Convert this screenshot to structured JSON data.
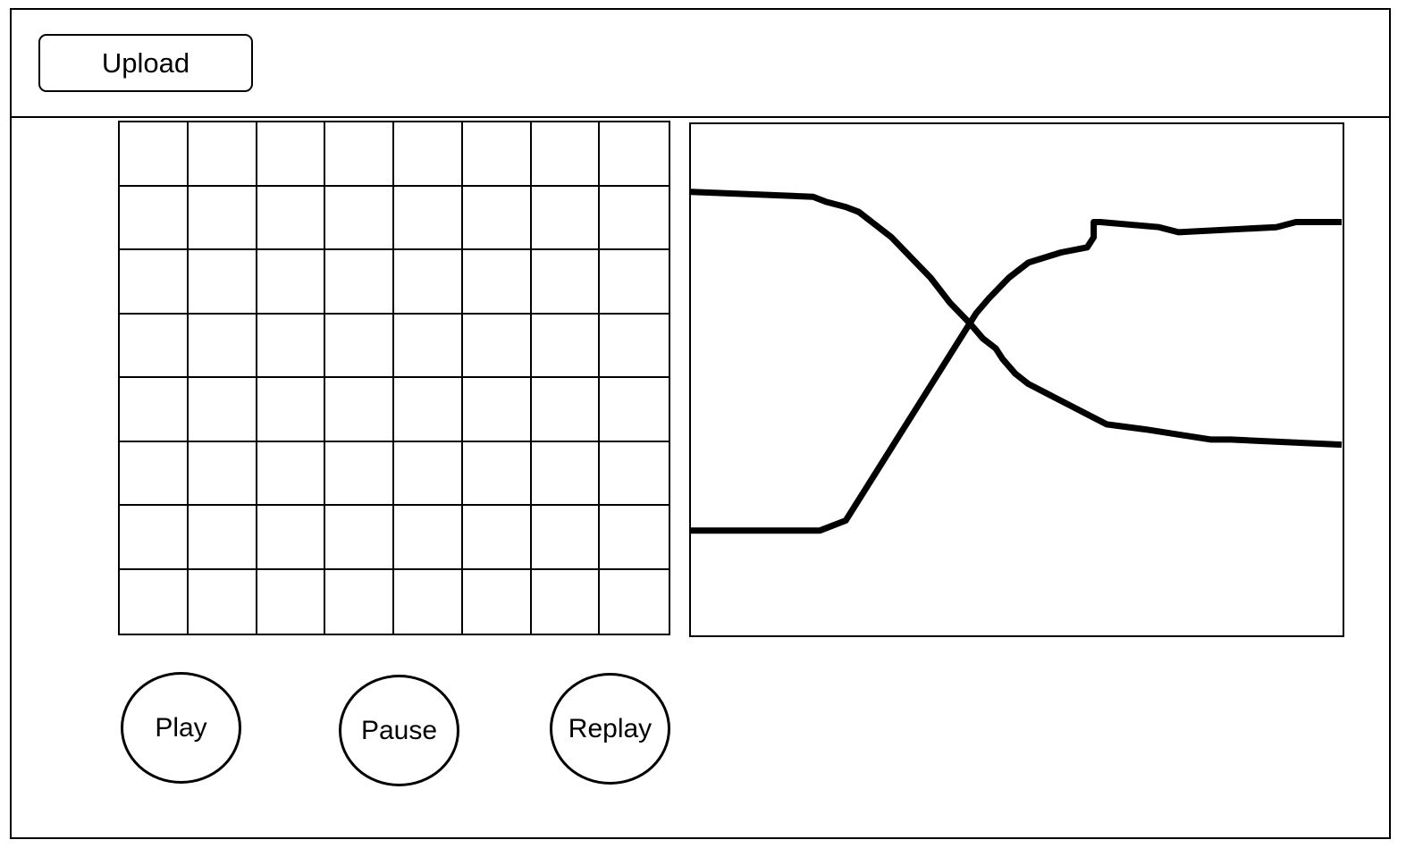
{
  "header": {
    "upload_label": "Upload"
  },
  "grid": {
    "rows": 8,
    "cols": 8
  },
  "chart_data": {
    "type": "line",
    "title": "",
    "xlabel": "",
    "ylabel": "",
    "grid": false,
    "series": [
      {
        "x": [
          0,
          0.19,
          0.21,
          0.24,
          0.26,
          0.28,
          0.31,
          0.34,
          0.37,
          0.4,
          0.43,
          0.45,
          0.47,
          0.48,
          0.5,
          0.52,
          0.55,
          0.58,
          0.61,
          0.64,
          0.7,
          0.75,
          0.8,
          0.83,
          1.0
        ],
        "y": [
          0.87,
          0.86,
          0.85,
          0.84,
          0.83,
          0.81,
          0.78,
          0.74,
          0.7,
          0.65,
          0.61,
          0.58,
          0.56,
          0.54,
          0.51,
          0.49,
          0.47,
          0.45,
          0.43,
          0.41,
          0.4,
          0.39,
          0.38,
          0.38,
          0.37
        ]
      },
      {
        "x": [
          0,
          0.2,
          0.24,
          0.44,
          0.46,
          0.49,
          0.52,
          0.57,
          0.61,
          0.62,
          0.62,
          0.63,
          0.72,
          0.75,
          0.9,
          0.93,
          1.0
        ],
        "y": [
          0.2,
          0.2,
          0.22,
          0.63,
          0.66,
          0.7,
          0.73,
          0.75,
          0.76,
          0.78,
          0.81,
          0.81,
          0.8,
          0.79,
          0.8,
          0.81,
          0.81
        ]
      }
    ]
  },
  "controls": {
    "play_label": "Play",
    "pause_label": "Pause",
    "replay_label": "Replay"
  },
  "colors": {
    "stroke": "#000000",
    "background": "#ffffff"
  }
}
